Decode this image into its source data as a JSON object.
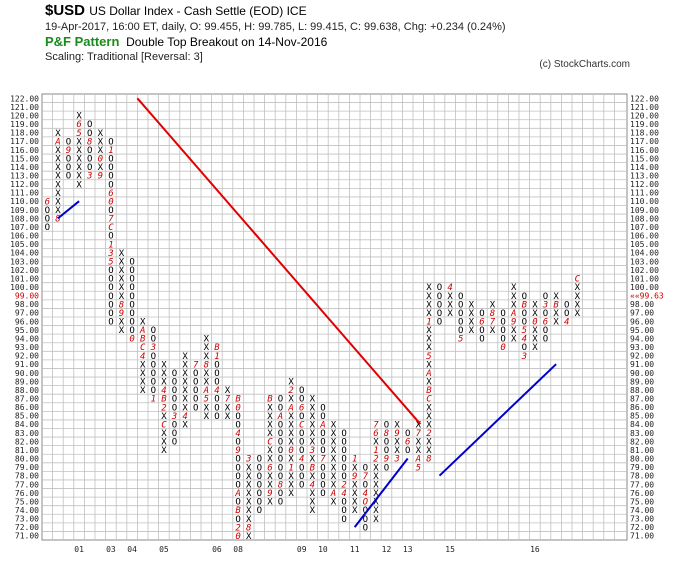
{
  "header": {
    "symbol": "$USD",
    "name": "US Dollar Index - Cash Settle (EOD)  ICE",
    "quote": "19-Apr-2017, 16:00 ET, daily, O: 99.455, H: 99.785, L: 99.415, C: 99.638, Chg: +0.234 (0.24%)",
    "pattern_label": "P&F Pattern",
    "pattern_text": "Double Top Breakout on 14-Nov-2016",
    "scaling": "Scaling: Traditional [Reversal: 3]",
    "copyright": "(c) StockCharts.com"
  },
  "colors": {
    "grid": "#c0c0c0",
    "box": "#000000",
    "month_marker": "#cc0000",
    "resistance_line": "#e00000",
    "support_line": "#0000cc",
    "pattern": "#1a8a1a",
    "price_label": "#cc0000"
  },
  "chart_data": {
    "type": "point-and-figure",
    "box_size": 1,
    "reversal": 3,
    "y_range": [
      71,
      122
    ],
    "y_ticks": [
      "122.00",
      "121.00",
      "120.00",
      "119.00",
      "118.00",
      "117.00",
      "116.00",
      "115.00",
      "114.00",
      "113.00",
      "112.00",
      "111.00",
      "110.00",
      "109.00",
      "108.00",
      "107.00",
      "106.00",
      "105.00",
      "104.00",
      "103.00",
      "102.00",
      "101.00",
      "100.00",
      "99.00",
      "98.00",
      "97.00",
      "96.00",
      "95.00",
      "94.00",
      "93.00",
      "92.00",
      "91.00",
      "90.00",
      "89.00",
      "88.00",
      "87.00",
      "86.00",
      "85.00",
      "84.00",
      "83.00",
      "82.00",
      "81.00",
      "80.00",
      "79.00",
      "78.00",
      "77.00",
      "76.00",
      "75.00",
      "74.00",
      "73.00",
      "72.00",
      "71.00"
    ],
    "last_price_left": "99.00",
    "last_price_right": "99.63",
    "x_labels": [
      {
        "label": "01",
        "col": 3
      },
      {
        "label": "03",
        "col": 6
      },
      {
        "label": "04",
        "col": 8
      },
      {
        "label": "05",
        "col": 11
      },
      {
        "label": "06",
        "col": 16
      },
      {
        "label": "08",
        "col": 18
      },
      {
        "label": "09",
        "col": 24
      },
      {
        "label": "10",
        "col": 26
      },
      {
        "label": "11",
        "col": 29
      },
      {
        "label": "12",
        "col": 32
      },
      {
        "label": "13",
        "col": 34
      },
      {
        "label": "15",
        "col": 38
      },
      {
        "label": "16",
        "col": 46
      }
    ],
    "columns": [
      {
        "t": "O",
        "high": 110,
        "low": 107,
        "marks": {
          "110": "6"
        }
      },
      {
        "t": "X",
        "high": 118,
        "low": 108,
        "marks": {
          "108": "8",
          "117": "A"
        }
      },
      {
        "t": "O",
        "high": 117,
        "low": 113,
        "marks": {
          "116": "9"
        }
      },
      {
        "t": "X",
        "high": 120,
        "low": 112,
        "marks": {
          "118": "5",
          "119": "6"
        }
      },
      {
        "t": "O",
        "high": 119,
        "low": 113,
        "marks": {
          "113": "3",
          "117": "8"
        }
      },
      {
        "t": "X",
        "high": 118,
        "low": 113,
        "marks": {
          "113": "9",
          "115": "0"
        }
      },
      {
        "t": "O",
        "high": 117,
        "low": 96,
        "marks": {
          "116": "1",
          "111": "6",
          "110": "0",
          "108": "7",
          "107": "C",
          "105": "1",
          "104": "3",
          "103": "5"
        }
      },
      {
        "t": "X",
        "high": 104,
        "low": 95,
        "marks": {
          "98": "8",
          "97": "9"
        }
      },
      {
        "t": "O",
        "high": 103,
        "low": 94,
        "marks": {
          "94": "0"
        }
      },
      {
        "t": "X",
        "high": 96,
        "low": 88,
        "marks": {
          "95": "A",
          "94": "B",
          "93": "C",
          "92": "4"
        }
      },
      {
        "t": "O",
        "high": 95,
        "low": 87,
        "marks": {
          "93": "3",
          "87": "1"
        }
      },
      {
        "t": "X",
        "high": 91,
        "low": 81,
        "marks": {
          "88": "4",
          "87": "B",
          "86": "2",
          "84": "C"
        }
      },
      {
        "t": "O",
        "high": 90,
        "low": 82,
        "marks": {
          "85": "3"
        }
      },
      {
        "t": "X",
        "high": 92,
        "low": 84,
        "marks": {
          "85": "4"
        }
      },
      {
        "t": "O",
        "high": 91,
        "low": 86,
        "marks": {
          "91": "7"
        }
      },
      {
        "t": "X",
        "high": 94,
        "low": 85,
        "marks": {
          "91": "8",
          "88": "A",
          "87": "5"
        }
      },
      {
        "t": "O",
        "high": 93,
        "low": 85,
        "marks": {
          "93": "B",
          "92": "1",
          "88": "4"
        }
      },
      {
        "t": "X",
        "high": 88,
        "low": 85,
        "marks": {
          "87": "7"
        }
      },
      {
        "t": "O",
        "high": 87,
        "low": 71,
        "marks": {
          "87": "B",
          "86": "0",
          "83": "4",
          "81": "9",
          "76": "A",
          "74": "B",
          "72": "2",
          "71": "0"
        }
      },
      {
        "t": "X",
        "high": 80,
        "low": 71,
        "marks": {
          "80": "3",
          "72": "8"
        }
      },
      {
        "t": "O",
        "high": 80,
        "low": 74,
        "marks": {}
      },
      {
        "t": "X",
        "high": 87,
        "low": 75,
        "marks": {
          "87": "B",
          "82": "C",
          "79": "6",
          "76": "9"
        }
      },
      {
        "t": "O",
        "high": 87,
        "low": 75,
        "marks": {
          "85": "A",
          "77": "8"
        }
      },
      {
        "t": "X",
        "high": 89,
        "low": 76,
        "marks": {
          "88": "2",
          "86": "A",
          "81": "0",
          "79": "1"
        }
      },
      {
        "t": "O",
        "high": 88,
        "low": 77,
        "marks": {
          "86": "6",
          "84": "C",
          "80": "4"
        }
      },
      {
        "t": "X",
        "high": 87,
        "low": 74,
        "marks": {
          "81": "3",
          "79": "B",
          "77": "4"
        }
      },
      {
        "t": "O",
        "high": 86,
        "low": 76,
        "marks": {
          "84": "A",
          "80": "7"
        }
      },
      {
        "t": "X",
        "high": 84,
        "low": 75,
        "marks": {
          "76": "A"
        }
      },
      {
        "t": "O",
        "high": 83,
        "low": 73,
        "marks": {
          "77": "2",
          "76": "4"
        }
      },
      {
        "t": "X",
        "high": 80,
        "low": 74,
        "marks": {
          "80": "1",
          "78": "9"
        }
      },
      {
        "t": "O",
        "high": 79,
        "low": 72,
        "marks": {
          "78": "7",
          "76": "4",
          "75": "O"
        }
      },
      {
        "t": "X",
        "high": 84,
        "low": 73,
        "marks": {
          "84": "7",
          "83": "6",
          "81": "1",
          "80": "2"
        }
      },
      {
        "t": "O",
        "high": 84,
        "low": 79,
        "marks": {
          "83": "8",
          "80": "9"
        }
      },
      {
        "t": "X",
        "high": 84,
        "low": 80,
        "marks": {
          "83": "9",
          "80": "3"
        }
      },
      {
        "t": "O",
        "high": 83,
        "low": 81,
        "marks": {
          "82": "6"
        }
      },
      {
        "t": "X",
        "high": 84,
        "low": 79,
        "marks": {
          "83": "7",
          "80": "A",
          "79": "5"
        }
      },
      {
        "t": "X",
        "high": 100,
        "low": 80,
        "marks": {
          "96": "1",
          "92": "5",
          "90": "A",
          "88": "B",
          "87": "C",
          "83": "2",
          "80": "8"
        }
      },
      {
        "t": "O",
        "high": 100,
        "low": 96,
        "marks": {}
      },
      {
        "t": "X",
        "high": 100,
        "low": 97,
        "marks": {
          "100": "4"
        }
      },
      {
        "t": "O",
        "high": 99,
        "low": 94,
        "marks": {
          "94": "5"
        }
      },
      {
        "t": "X",
        "high": 98,
        "low": 95,
        "marks": {}
      },
      {
        "t": "O",
        "high": 97,
        "low": 94,
        "marks": {
          "96": "6"
        }
      },
      {
        "t": "X",
        "high": 98,
        "low": 95,
        "marks": {
          "96": "7",
          "97": "8"
        }
      },
      {
        "t": "O",
        "high": 97,
        "low": 93,
        "marks": {
          "93": "0"
        }
      },
      {
        "t": "X",
        "high": 100,
        "low": 94,
        "marks": {
          "96": "9",
          "97": "A"
        }
      },
      {
        "t": "O",
        "high": 99,
        "low": 92,
        "marks": {
          "98": "B",
          "95": "5",
          "94": "4",
          "92": "3"
        }
      },
      {
        "t": "X",
        "high": 98,
        "low": 93,
        "marks": {
          "99": "2",
          "96": "0"
        }
      },
      {
        "t": "O",
        "high": 99,
        "low": 94,
        "marks": {
          "98": "3",
          "96": "6"
        }
      },
      {
        "t": "X",
        "high": 99,
        "low": 96,
        "marks": {
          "98": "B"
        }
      },
      {
        "t": "O",
        "high": 98,
        "low": 96,
        "marks": {
          "96": "4"
        }
      },
      {
        "t": "X",
        "high": 101,
        "low": 97,
        "marks": {
          "101": "C"
        }
      }
    ],
    "trendlines": [
      {
        "kind": "resistance",
        "color": "red",
        "points": [
          [
            8.5,
            122
          ],
          [
            35.2,
            84
          ]
        ]
      },
      {
        "kind": "support",
        "color": "blue",
        "points": [
          [
            1,
            108
          ],
          [
            3,
            110
          ]
        ]
      },
      {
        "kind": "support",
        "color": "blue",
        "points": [
          [
            29,
            72
          ],
          [
            34,
            80
          ]
        ]
      },
      {
        "kind": "support",
        "color": "blue",
        "points": [
          [
            37,
            78
          ],
          [
            48,
            91
          ]
        ]
      }
    ]
  }
}
